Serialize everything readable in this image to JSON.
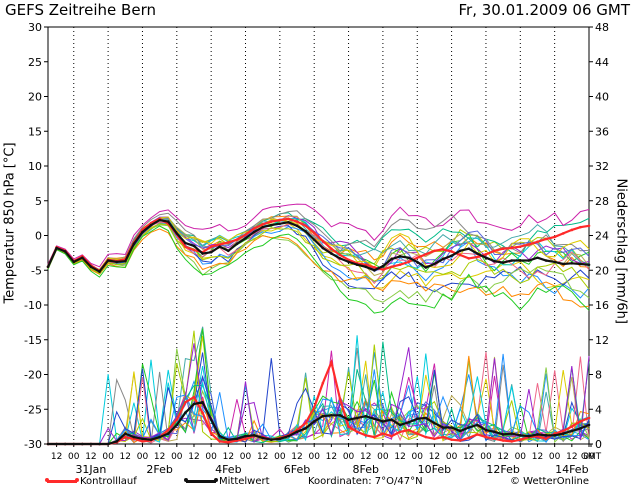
{
  "header": {
    "title": "GEFS Zeitreihe Bern",
    "timestamp": "Fr, 30.01.2009 06 GMT"
  },
  "legend": {
    "control_label": "Kontrolllauf",
    "mean_label": "Mittelwert",
    "coords_label": "Koordinaten: 7°O/47°N",
    "brand": "© WetterOnline"
  },
  "colors": {
    "control": "#ff2a2a",
    "mean": "#111111",
    "grid": "#000000",
    "members": [
      "#ff8800",
      "#ddcc00",
      "#aacc00",
      "#22cc22",
      "#00bb88",
      "#00ccdd",
      "#1e90ff",
      "#2244cc",
      "#9922cc",
      "#cc22aa",
      "#888888",
      "#44aaaa",
      "#ee6688",
      "#88cc44",
      "#bbaa55",
      "#5566dd"
    ]
  },
  "chart_data": {
    "type": "line",
    "x_unit": "6-hourly steps from 30.01.2009 06 GMT",
    "x_tick_labels": [
      "12",
      "00",
      "12",
      "00",
      "12",
      "00",
      "12",
      "00",
      "12",
      "00",
      "12",
      "00",
      "12",
      "00",
      "12",
      "00",
      "12",
      "00",
      "12",
      "00",
      "12",
      "00",
      "12",
      "00",
      "12",
      "00",
      "12",
      "00",
      "12",
      "00",
      "12",
      "00",
      "GMT"
    ],
    "date_labels": [
      "31Jan",
      "2Feb",
      "4Feb",
      "6Feb",
      "8Feb",
      "10Feb",
      "12Feb",
      "14Feb"
    ],
    "ylabel_left": "Temperatur 850 hPa [°C]",
    "ylabel_right": "Niederschlag [mm/6h]",
    "ylim_left": [
      -30,
      30
    ],
    "ylim_right": [
      0,
      48
    ],
    "yticks_left": [
      30,
      25,
      20,
      15,
      10,
      5,
      0,
      -5,
      -10,
      -15,
      -20,
      -25,
      -30
    ],
    "yticks_right": [
      48,
      44,
      40,
      36,
      32,
      28,
      24,
      20,
      16,
      12,
      8,
      4,
      0
    ],
    "grid": "dotted vertical at 00 GMT",
    "legend_position": "bottom",
    "temperature": {
      "mean": [
        -4.5,
        -1.8,
        -2.3,
        -3.8,
        -3.2,
        -4.5,
        -5.2,
        -3.6,
        -3.8,
        -3.7,
        -1.2,
        0.5,
        1.5,
        2.2,
        2.0,
        0.3,
        -1.1,
        -1.5,
        -2.6,
        -2.4,
        -1.6,
        -2.2,
        -1.2,
        -0.4,
        0.5,
        1.2,
        1.5,
        1.7,
        1.9,
        1.4,
        0.6,
        -0.6,
        -1.8,
        -2.6,
        -3.3,
        -3.8,
        -4.2,
        -4.5,
        -5.0,
        -4.4,
        -3.4,
        -3.0,
        -3.2,
        -3.8,
        -4.6,
        -4.1,
        -3.4,
        -2.9,
        -2.2,
        -1.9,
        -2.6,
        -3.2,
        -3.7,
        -3.9,
        -3.6,
        -3.6,
        -3.6,
        -3.2,
        -3.6,
        -3.8,
        -4.1,
        -4.0,
        -4.1,
        -4.2
      ],
      "control": [
        -4.5,
        -1.7,
        -2.2,
        -3.7,
        -3.0,
        -4.3,
        -5.1,
        -3.5,
        -3.7,
        -3.4,
        -1.0,
        0.8,
        1.8,
        2.4,
        1.7,
        0.2,
        -1.6,
        -2.1,
        -2.4,
        -1.6,
        -1.3,
        -1.0,
        -0.6,
        0.1,
        1.0,
        1.6,
        2.0,
        2.2,
        2.4,
        2.0,
        1.4,
        0.4,
        -0.8,
        -1.9,
        -2.8,
        -3.5,
        -4.0,
        -4.2,
        -4.6,
        -4.9,
        -4.5,
        -4.2,
        -3.8,
        -3.2,
        -2.7,
        -2.2,
        -2.0,
        -2.3,
        -2.8,
        -3.3,
        -3.1,
        -2.7,
        -2.2,
        -1.9,
        -1.8,
        -1.6,
        -1.3,
        -0.9,
        -0.5,
        -0.2,
        0.3,
        0.8,
        1.2,
        1.4
      ],
      "spread": [
        0.4,
        0.3,
        0.4,
        0.5,
        0.5,
        0.6,
        0.7,
        0.8,
        1.0,
        1.1,
        1.2,
        1.2,
        1.2,
        1.3,
        1.6,
        2.2,
        2.8,
        3.2,
        3.6,
        3.6,
        3.2,
        2.8,
        2.5,
        2.4,
        2.4,
        2.5,
        2.6,
        2.8,
        3.0,
        3.2,
        3.6,
        4.0,
        4.4,
        4.8,
        5.2,
        5.6,
        5.8,
        6.0,
        6.2,
        6.4,
        6.5,
        6.6,
        6.8,
        6.9,
        7.0,
        7.0,
        7.1,
        7.2,
        7.3,
        7.3,
        7.4,
        7.4,
        7.5,
        7.5,
        7.5,
        7.6,
        7.6,
        7.6,
        7.7,
        7.7,
        7.7,
        7.8,
        7.8,
        7.8
      ]
    },
    "precipitation": {
      "mean": [
        0,
        0,
        0,
        0,
        0,
        0,
        0,
        0,
        0.3,
        1.2,
        0.8,
        0.6,
        0.5,
        0.8,
        1.2,
        2.2,
        3.6,
        4.6,
        4.8,
        2.8,
        0.9,
        0.5,
        0.6,
        0.9,
        1.0,
        0.7,
        0.5,
        0.6,
        0.9,
        1.4,
        1.8,
        2.6,
        3.2,
        3.3,
        3.3,
        2.8,
        3.0,
        3.2,
        2.9,
        2.6,
        2.8,
        2.2,
        2.5,
        2.9,
        3.0,
        2.4,
        1.9,
        1.9,
        1.5,
        1.9,
        2.2,
        1.6,
        1.4,
        1.1,
        1.2,
        1.0,
        0.9,
        1.1,
        1.0,
        1.0,
        1.2,
        1.5,
        1.8,
        2.2
      ],
      "control": [
        0,
        0,
        0,
        0,
        0,
        0,
        0,
        0,
        0.2,
        0.8,
        0.6,
        0.3,
        0.4,
        0.8,
        1.6,
        2.8,
        4.8,
        5.4,
        3.6,
        1.2,
        0.3,
        0.2,
        0.4,
        0.6,
        0.9,
        0.8,
        0.5,
        0.7,
        1.0,
        1.6,
        2.4,
        4.2,
        7.0,
        9.4,
        5.2,
        2.0,
        1.4,
        1.0,
        0.8,
        1.2,
        0.9,
        1.4,
        1.6,
        1.2,
        0.8,
        0.6,
        0.8,
        0.5,
        0.4,
        0.7,
        1.1,
        0.8,
        0.6,
        0.4,
        0.3,
        0.5,
        0.8,
        0.9,
        0.6,
        1.2,
        1.5,
        2.0,
        2.6,
        3.0
      ],
      "member_peak": 13.5
    },
    "member_count": 20
  }
}
